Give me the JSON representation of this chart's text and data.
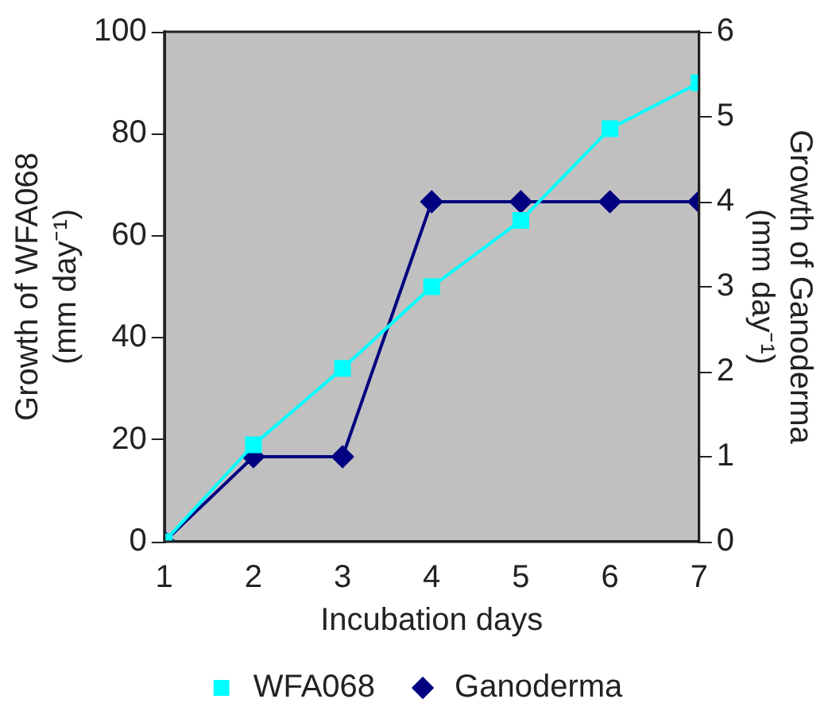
{
  "chart_data": {
    "type": "line",
    "xlabel": "Incubation days",
    "ylabel": "Growth of WFA068 (mm day⁻¹)",
    "y2label": "Growth of Ganoderma (mm day⁻¹)",
    "x": [
      1,
      2,
      3,
      4,
      5,
      6,
      7
    ],
    "xlim": [
      1,
      7
    ],
    "xticks": [
      1,
      2,
      3,
      4,
      5,
      6,
      7
    ],
    "ylim": [
      0,
      100
    ],
    "yticks": [
      0,
      20,
      40,
      60,
      80,
      100
    ],
    "y2lim": [
      0,
      6
    ],
    "y2ticks": [
      0,
      1,
      2,
      3,
      4,
      5,
      6
    ],
    "series": [
      {
        "name": "WFA068",
        "color": "#00ffff",
        "marker": "square",
        "values": [
          0,
          19,
          34,
          50,
          63,
          81,
          90
        ]
      },
      {
        "name": "Ganoderma",
        "color": "#000080",
        "marker": "diamond",
        "axis": "y2",
        "values": [
          0,
          1,
          1,
          4,
          4,
          4,
          4
        ]
      }
    ],
    "grid": false,
    "legend": "bottom",
    "line_style": "solid"
  }
}
